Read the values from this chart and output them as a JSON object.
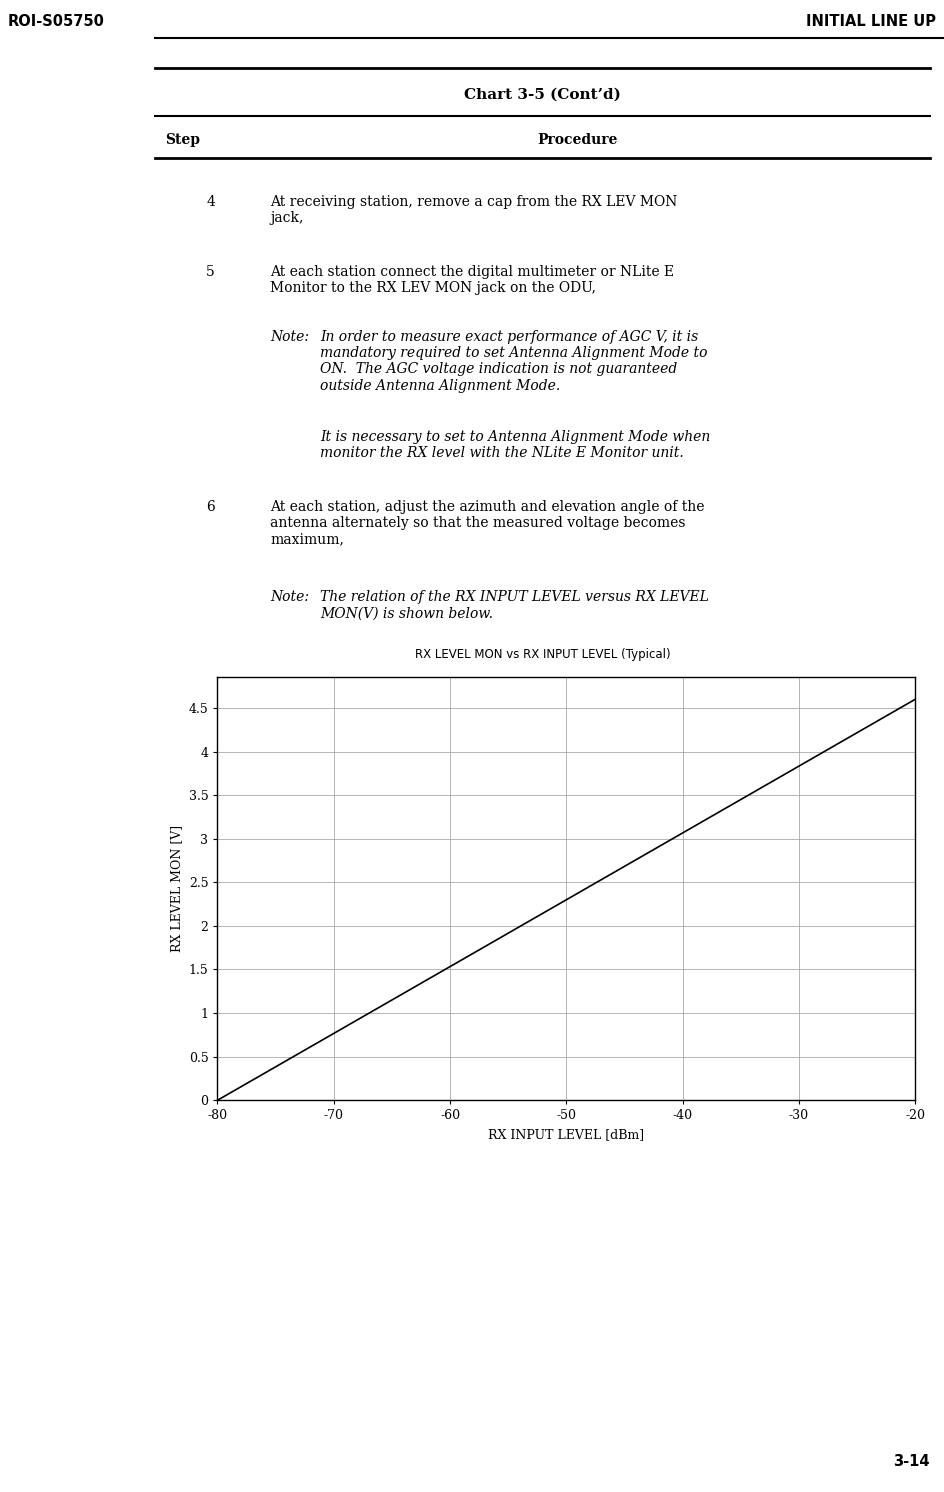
{
  "header_left": "ROI-S05750",
  "header_right": "INITIAL LINE UP",
  "chart_title": "Chart 3-5 (Cont’d)",
  "col_step": "Step",
  "col_procedure": "Procedure",
  "graph_title": "RX LEVEL MON vs RX INPUT LEVEL (Typical)",
  "x_label": "RX INPUT LEVEL [dBm]",
  "y_label": "RX LEVEL MON [V]",
  "x_data": [
    -80,
    -20
  ],
  "y_data": [
    0,
    4.6
  ],
  "xlim": [
    -80,
    -20
  ],
  "ylim": [
    0,
    4.85
  ],
  "xticks": [
    -80,
    -70,
    -60,
    -50,
    -40,
    -30,
    -20
  ],
  "xtick_labels": [
    "-80",
    "-70",
    "-60",
    "-50",
    "-40",
    "-30",
    "-20"
  ],
  "yticks": [
    0,
    0.5,
    1,
    1.5,
    2,
    2.5,
    3,
    3.5,
    4,
    4.5
  ],
  "ytick_labels": [
    "0",
    "0.5",
    "1",
    "1.5",
    "2",
    "2.5",
    "3",
    "3.5",
    "4",
    "4.5"
  ],
  "page_number": "3-14",
  "background_color": "#ffffff",
  "line_color": "#000000",
  "grid_color": "#999999",
  "header_font_size": 10.5,
  "title_font_size": 11,
  "body_font_size": 10,
  "note_font_size": 10,
  "graph_title_font_size": 8.5,
  "axis_label_font_size": 9,
  "tick_font_size": 9
}
